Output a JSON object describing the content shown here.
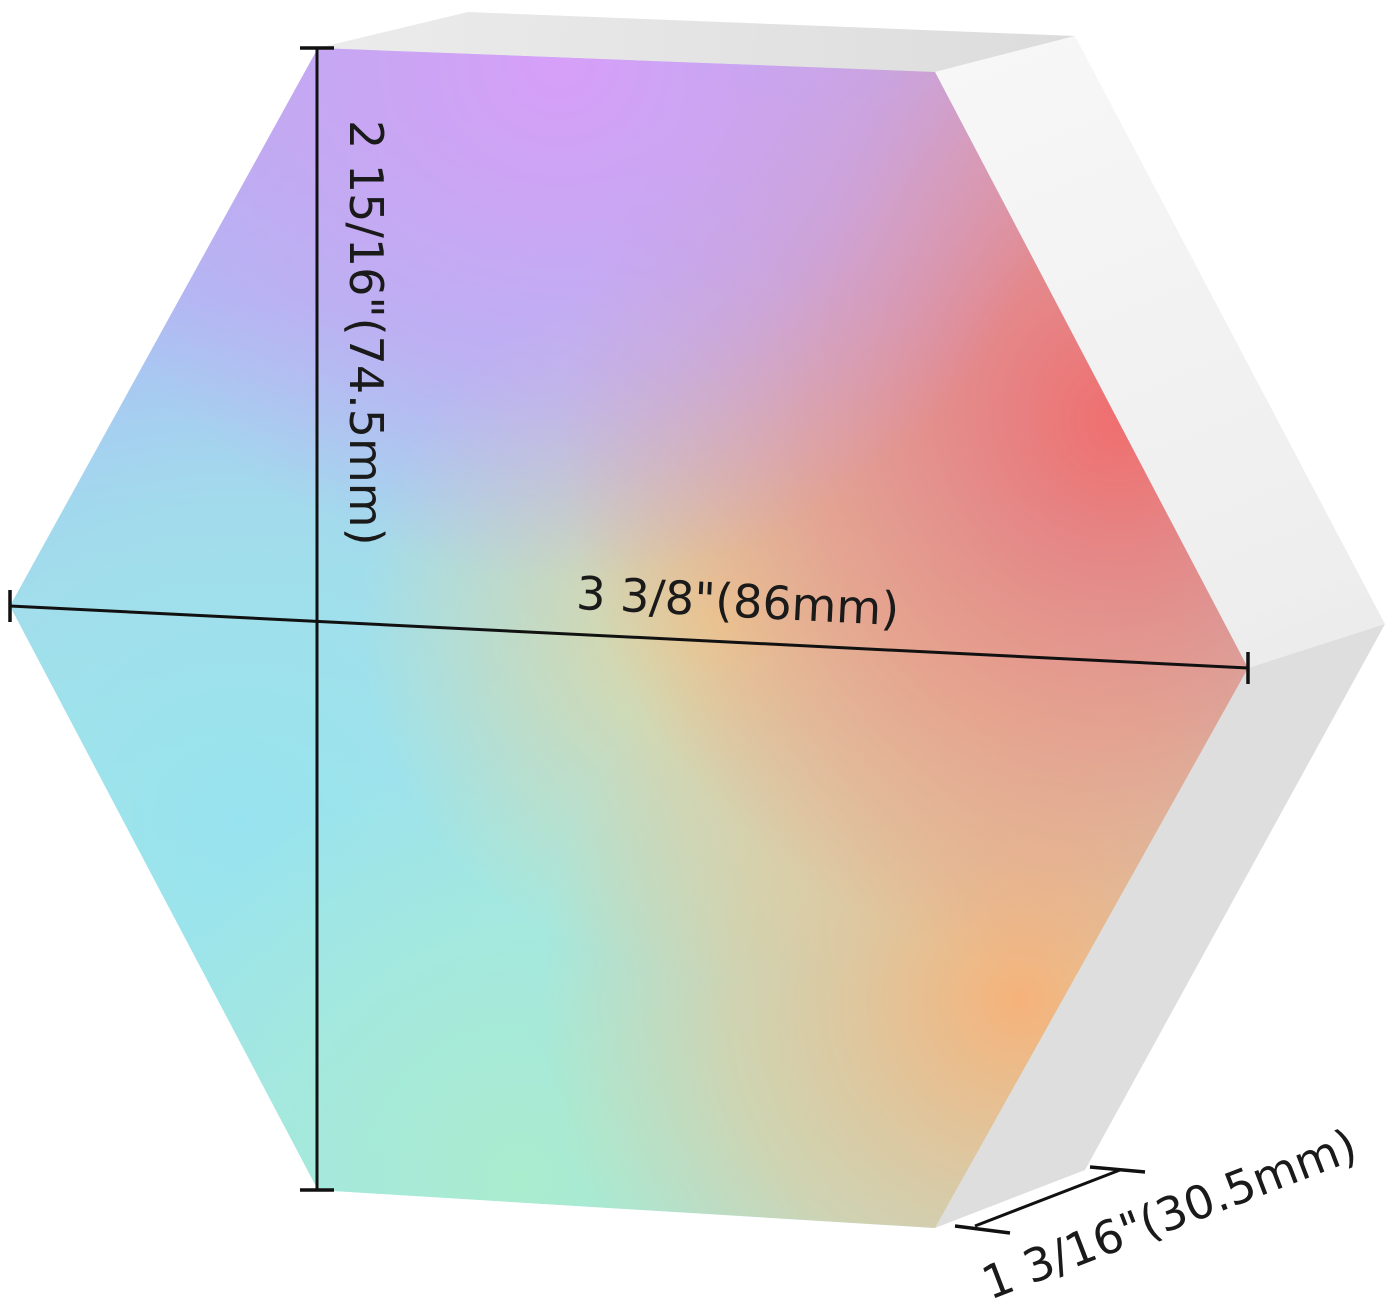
{
  "dimensions": {
    "width_label": "3 3/8\"(86mm)",
    "height_label": "2 15/16\"(74.5mm)",
    "depth_label": "1 3/16\"(30.5mm)"
  },
  "colors": {
    "background": "#ffffff",
    "side_light": "#f2f2f2",
    "side_mid": "#e4e4e4",
    "side_dark": "#d6d6d6",
    "gradient_purple": "#d3a0f5",
    "gradient_blue": "#9fc9f5",
    "gradient_cyan": "#9ee8e6",
    "gradient_green": "#a8ebc8",
    "gradient_yellow": "#e9d79a",
    "gradient_orange": "#f4b47c",
    "gradient_red": "#ee7777"
  }
}
